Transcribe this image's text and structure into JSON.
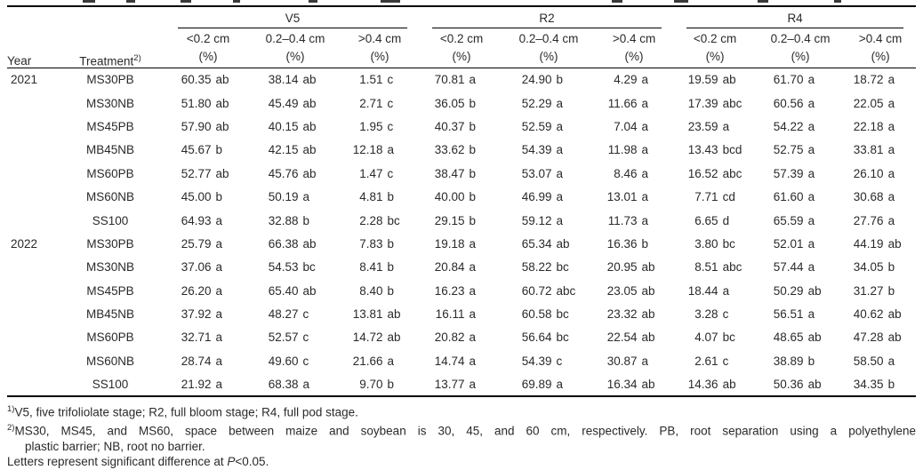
{
  "table": {
    "header": {
      "year": "Year",
      "treatment": "Treatment",
      "treatment_sup": "2)",
      "unit": "(%)",
      "groups": [
        {
          "label": "V5",
          "cols": [
            "<0.2 cm",
            "0.2–0.4 cm",
            ">0.4 cm"
          ]
        },
        {
          "label": "R2",
          "cols": [
            "<0.2 cm",
            "0.2–0.4 cm",
            ">0.4 cm"
          ]
        },
        {
          "label": "R4",
          "cols": [
            "<0.2 cm",
            "0.2–0.4 cm",
            ">0.4 cm"
          ]
        }
      ]
    },
    "rows": [
      {
        "year": "2021",
        "treatment": "MS30PB",
        "values": [
          "60.35 ab",
          "38.14 ab",
          "1.51 c",
          "70.81 a",
          "24.90 b",
          "4.29 a",
          "19.59 ab",
          "61.70 a",
          "18.72 a"
        ]
      },
      {
        "year": "",
        "treatment": "MS30NB",
        "values": [
          "51.80 ab",
          "45.49 ab",
          "2.71 c",
          "36.05 b",
          "52.29 a",
          "11.66 a",
          "17.39 abc",
          "60.56 a",
          "22.05 a"
        ]
      },
      {
        "year": "",
        "treatment": "MS45PB",
        "values": [
          "57.90 ab",
          "40.15 ab",
          "1.95 c",
          "40.37 b",
          "52.59 a",
          "7.04 a",
          "23.59 a",
          "54.22 a",
          "22.18 a"
        ]
      },
      {
        "year": "",
        "treatment": "MB45NB",
        "values": [
          "45.67 b",
          "42.15 ab",
          "12.18 a",
          "33.62 b",
          "54.39 a",
          "11.98 a",
          "13.43 bcd",
          "52.75 a",
          "33.81 a"
        ]
      },
      {
        "year": "",
        "treatment": "MS60PB",
        "values": [
          "52.77 ab",
          "45.76 ab",
          "1.47 c",
          "38.47 b",
          "53.07 a",
          "8.46 a",
          "16.52 abc",
          "57.39 a",
          "26.10 a"
        ]
      },
      {
        "year": "",
        "treatment": "MS60NB",
        "values": [
          "45.00 b",
          "50.19 a",
          "4.81 b",
          "40.00 b",
          "46.99 a",
          "13.01 a",
          "7.71 cd",
          "61.60 a",
          "30.68 a"
        ]
      },
      {
        "year": "",
        "treatment": "SS100",
        "values": [
          "64.93 a",
          "32.88 b",
          "2.28 bc",
          "29.15 b",
          "59.12 a",
          "11.73 a",
          "6.65 d",
          "65.59 a",
          "27.76 a"
        ]
      },
      {
        "year": "2022",
        "treatment": "MS30PB",
        "values": [
          "25.79 a",
          "66.38 ab",
          "7.83 b",
          "19.18 a",
          "65.34 ab",
          "16.36 b",
          "3.80 bc",
          "52.01 a",
          "44.19 ab"
        ]
      },
      {
        "year": "",
        "treatment": "MS30NB",
        "values": [
          "37.06 a",
          "54.53 bc",
          "8.41 b",
          "20.84 a",
          "58.22 bc",
          "20.95 ab",
          "8.51 abc",
          "57.44 a",
          "34.05 b"
        ]
      },
      {
        "year": "",
        "treatment": "MS45PB",
        "values": [
          "26.20 a",
          "65.40 ab",
          "8.40 b",
          "16.23 a",
          "60.72 abc",
          "23.05 ab",
          "18.44 a",
          "50.29 ab",
          "31.27 b"
        ]
      },
      {
        "year": "",
        "treatment": "MB45NB",
        "values": [
          "37.92 a",
          "48.27 c",
          "13.81 ab",
          "16.11 a",
          "60.58 bc",
          "23.32 ab",
          "3.28 c",
          "56.51 a",
          "40.62 ab"
        ]
      },
      {
        "year": "",
        "treatment": "MS60PB",
        "values": [
          "32.71 a",
          "52.57 c",
          "14.72 ab",
          "20.82 a",
          "56.64 bc",
          "22.54 ab",
          "4.07 bc",
          "48.65 ab",
          "47.28 ab"
        ]
      },
      {
        "year": "",
        "treatment": "MS60NB",
        "values": [
          "28.74 a",
          "49.60 c",
          "21.66 a",
          "14.74 a",
          "54.39 c",
          "30.87 a",
          "2.61 c",
          "38.89 b",
          "58.50 a"
        ]
      },
      {
        "year": "",
        "treatment": "SS100",
        "values": [
          "21.92 a",
          "68.38 a",
          "9.70 b",
          "13.77 a",
          "69.89 a",
          "16.34 ab",
          "14.36 ab",
          "50.36 ab",
          "34.35 b"
        ]
      }
    ]
  },
  "footnotes": {
    "fn1": {
      "sup": "1)",
      "text": "V5, five trifoliolate stage; R2, full bloom stage; R4, full pod stage."
    },
    "fn2": {
      "sup": "2)",
      "line1": "MS30, MS45, and MS60, space between maize and soybean is 30, 45, and 60 cm, respectively.  PB, root separation using a polyethylene",
      "line2": "plastic barrier; NB, root no barrier."
    },
    "fn3": {
      "prefix": "Letters represent significant difference at ",
      "p": "P",
      "suffix": "<0.05."
    }
  }
}
